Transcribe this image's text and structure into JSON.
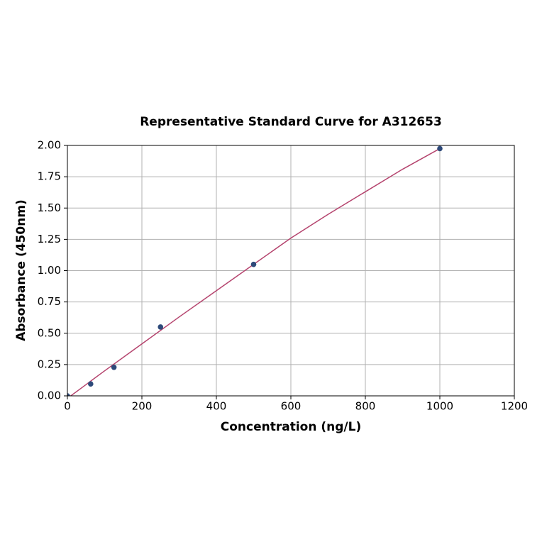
{
  "chart_data": {
    "type": "scatter",
    "title": "Representative Standard Curve for A312653",
    "x_label": "Concentration (ng/L)",
    "y_label": "Absorbance (450nm)",
    "series": [
      {
        "style": "line",
        "color": "#b5446e",
        "x": [
          0,
          100,
          200,
          300,
          400,
          500,
          600,
          700,
          800,
          900,
          1000
        ],
        "values": [
          -0.02,
          0.2,
          0.415,
          0.63,
          0.84,
          1.05,
          1.26,
          1.45,
          1.63,
          1.81,
          1.975
        ]
      },
      {
        "style": "markers",
        "color": "#2e4a7a",
        "x": [
          0,
          62.5,
          125,
          250,
          500,
          1000
        ],
        "values": [
          0,
          0.095,
          0.228,
          0.55,
          1.05,
          1.975
        ]
      }
    ],
    "xlim": [
      0,
      1200
    ],
    "xticks": [
      0,
      200,
      400,
      600,
      800,
      1000,
      1200
    ],
    "ylim": [
      0,
      2
    ],
    "yticks": [
      {
        "value": 0,
        "label": "0.00"
      },
      {
        "value": 0.25,
        "label": "0.25"
      },
      {
        "value": 0.5,
        "label": "0.50"
      },
      {
        "value": 0.75,
        "label": "0.75"
      },
      {
        "value": 1,
        "label": "1.00"
      },
      {
        "value": 1.25,
        "label": "1.25"
      },
      {
        "value": 1.5,
        "label": "1.50"
      },
      {
        "value": 1.75,
        "label": "1.75"
      },
      {
        "value": 2,
        "label": "2.00"
      }
    ],
    "grid": true
  }
}
